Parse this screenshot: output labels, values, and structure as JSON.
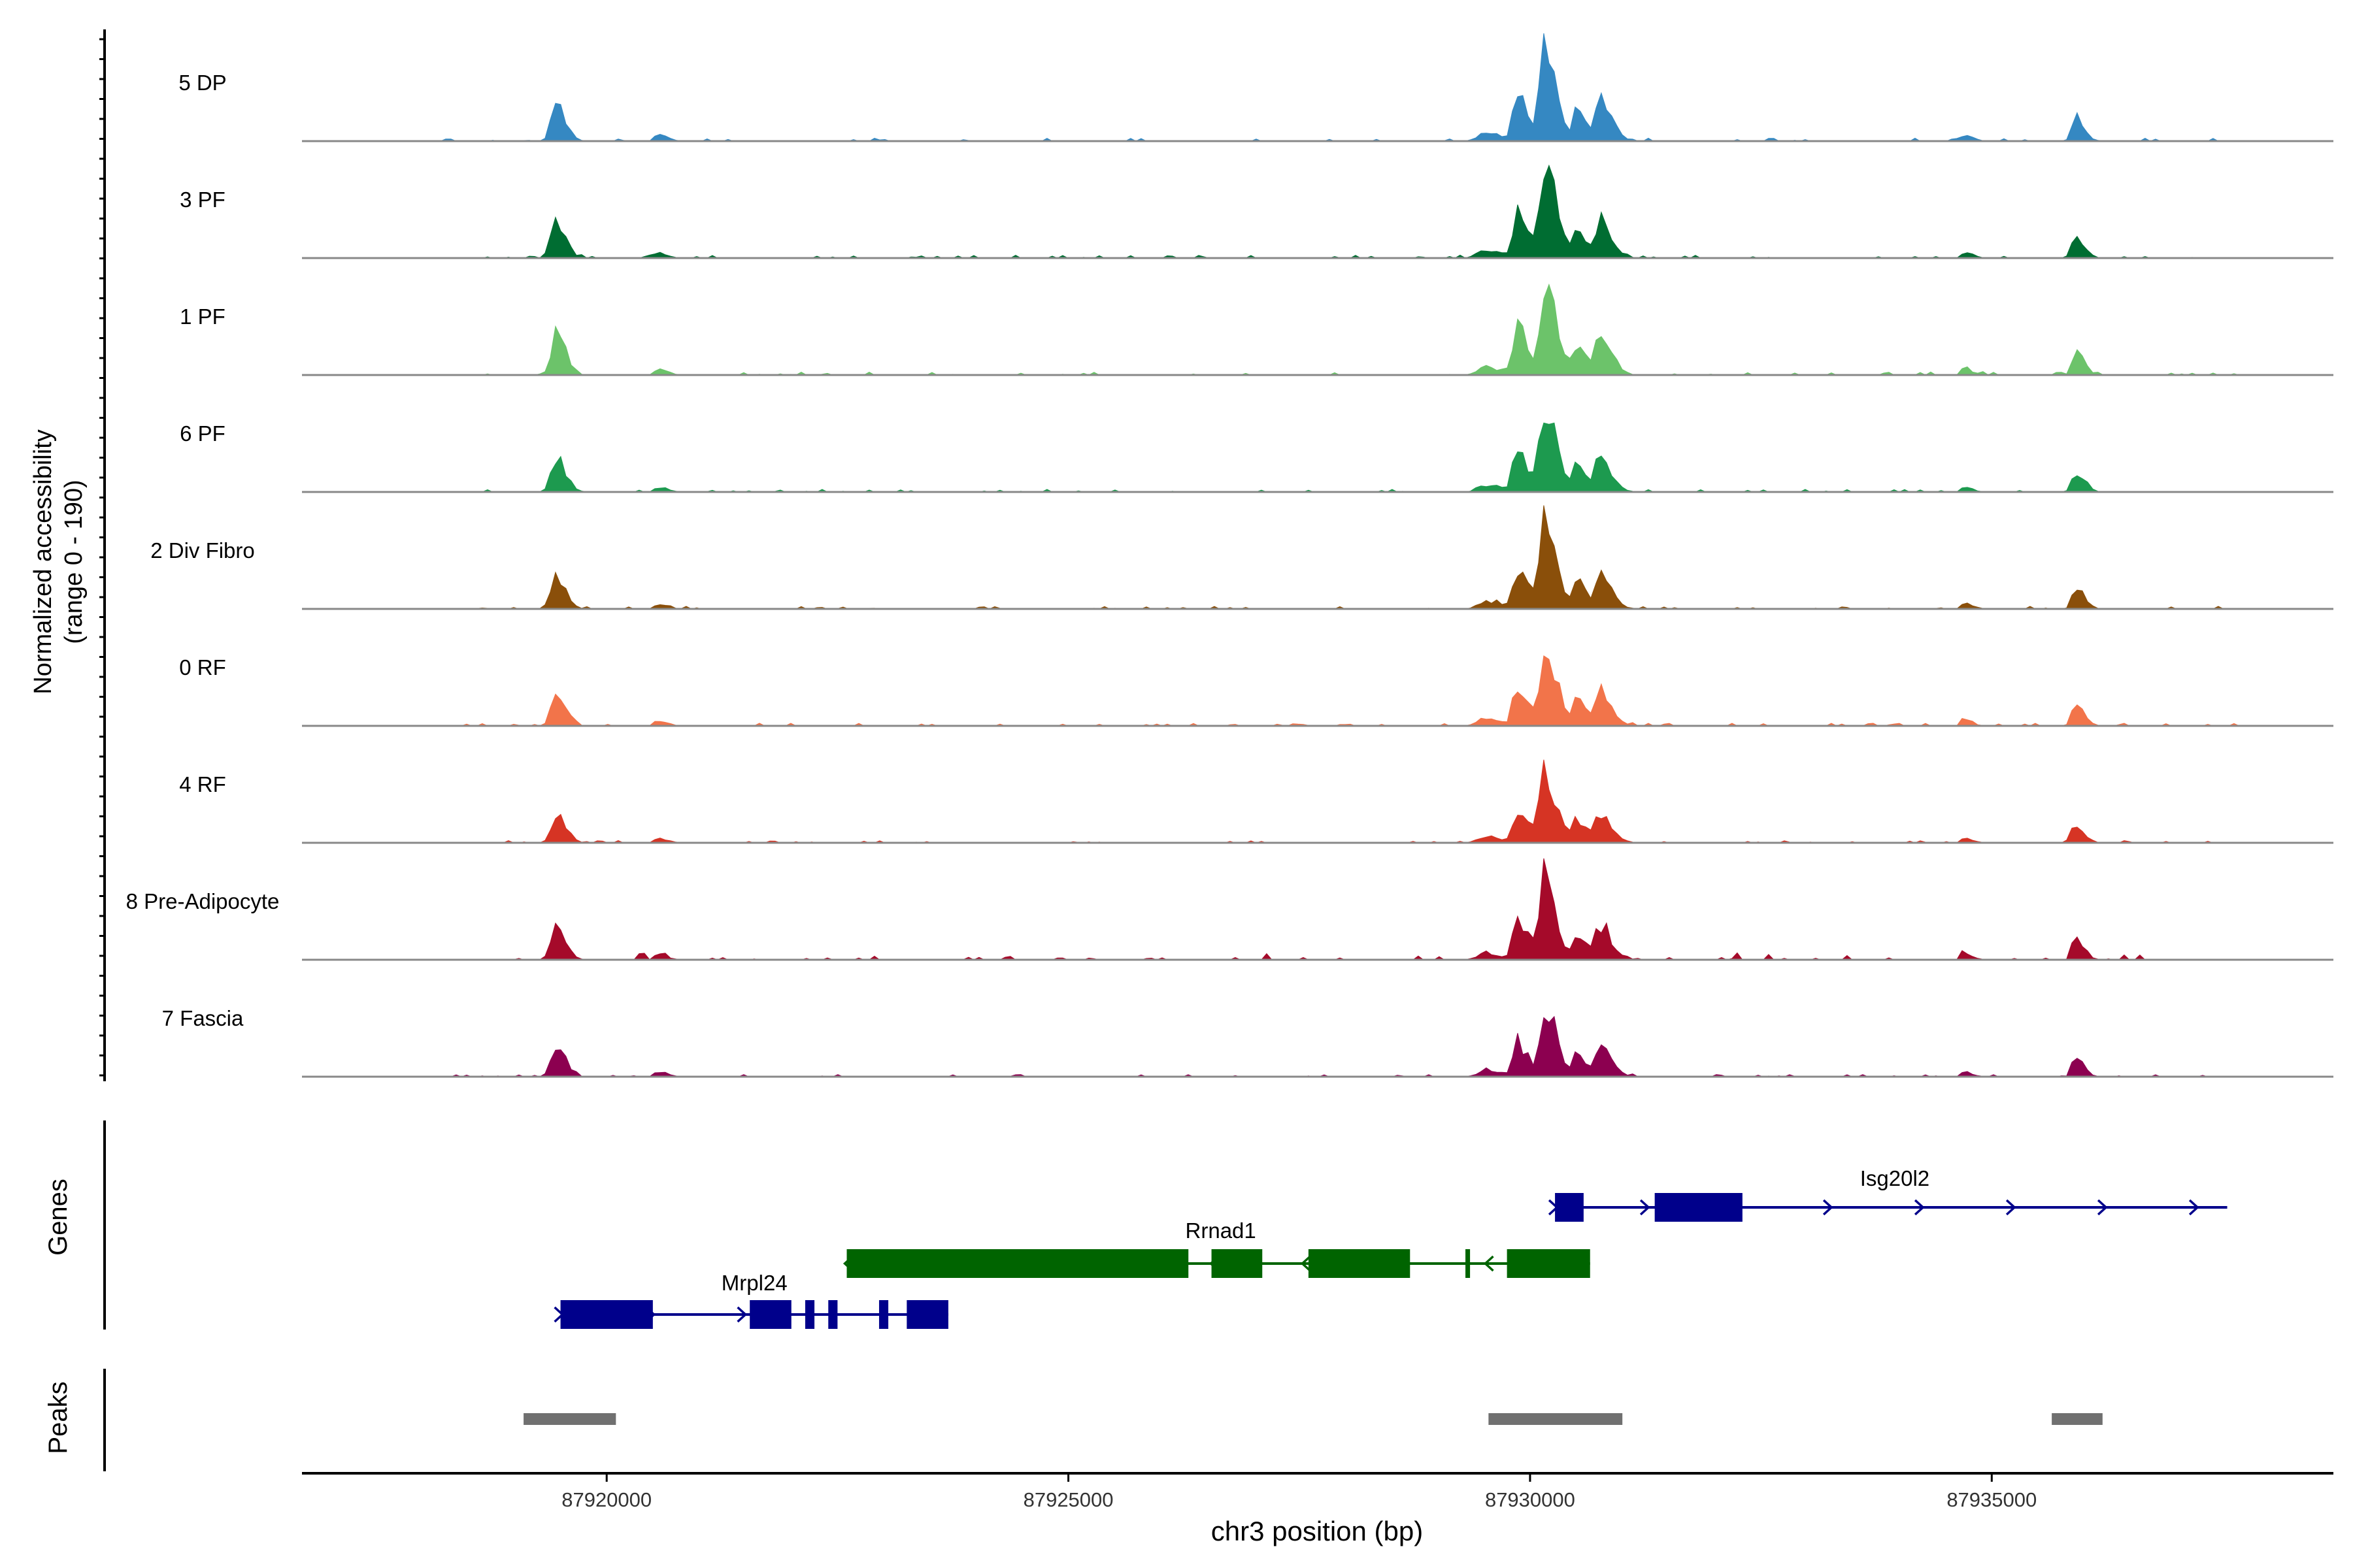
{
  "chart_data": {
    "type": "area",
    "title": "",
    "y_axis_label_line1": "Normalized accessibility",
    "y_axis_label_line2": "(range 0 - 190)",
    "x_axis_label": "chr3 position (bp)",
    "x_range": [
      87916700,
      87938700
    ],
    "x_ticks": [
      87920000,
      87925000,
      87930000,
      87935000
    ],
    "x_tick_labels": [
      "87920000",
      "87925000",
      "87930000",
      "87935000"
    ],
    "y_range": [
      0,
      190
    ],
    "peak_regions": [
      {
        "center": 87919450,
        "width": 130,
        "height": 0.4,
        "tail": 0.55
      },
      {
        "center": 87920550,
        "width": 80,
        "height": 0.06,
        "tail": 0.2
      },
      {
        "center": 87929500,
        "width": 180,
        "height": 0.08,
        "tail": 0.3
      },
      {
        "center": 87929850,
        "width": 100,
        "height": 0.45,
        "tail": 0.2
      },
      {
        "center": 87930150,
        "width": 110,
        "height": 0.95,
        "tail": 0.25
      },
      {
        "center": 87930500,
        "width": 90,
        "height": 0.3,
        "tail": 0.2
      },
      {
        "center": 87930750,
        "width": 100,
        "height": 0.38,
        "tail": 0.2
      },
      {
        "center": 87934700,
        "width": 70,
        "height": 0.06,
        "tail": 0.2
      },
      {
        "center": 87935900,
        "width": 90,
        "height": 0.24,
        "tail": 0.3
      }
    ],
    "tracks": [
      {
        "name": "5 DP",
        "color": "#3588c2",
        "scale": 0.92,
        "seed": 11
      },
      {
        "name": "3 PF",
        "color": "#006d32",
        "scale": 0.92,
        "seed": 23
      },
      {
        "name": "1 PF",
        "color": "#6cc36a",
        "scale": 0.95,
        "seed": 37
      },
      {
        "name": "6 PF",
        "color": "#1d9a4f",
        "scale": 0.8,
        "seed": 41
      },
      {
        "name": "2 Div Fibro",
        "color": "#8a4f0a",
        "scale": 0.82,
        "seed": 53
      },
      {
        "name": "0 RF",
        "color": "#f2744a",
        "scale": 0.83,
        "seed": 67
      },
      {
        "name": "4 RF",
        "color": "#d63424",
        "scale": 0.7,
        "seed": 71
      },
      {
        "name": "8 Pre-Adipocyte",
        "color": "#a50a2a",
        "scale": 0.8,
        "seed": 83
      },
      {
        "name": "7 Fascia",
        "color": "#8c0050",
        "scale": 0.7,
        "seed": 97
      }
    ],
    "genes_label": "Genes",
    "genes": [
      {
        "name": "Isg20l2",
        "label_at": 87933950,
        "strand": "+",
        "start": 87930270,
        "end": 87937550,
        "color": "#00008b",
        "exons": [
          [
            87930270,
            87930580
          ],
          [
            87931350,
            87932300
          ]
        ]
      },
      {
        "name": "Rrnad1",
        "label_at": 87926650,
        "strand": "-",
        "start": 87922600,
        "end": 87930650,
        "color": "#006400",
        "exons": [
          [
            87922600,
            87926300
          ],
          [
            87926550,
            87927100
          ],
          [
            87927600,
            87928700
          ],
          [
            87929300,
            87929350
          ],
          [
            87929750,
            87930650
          ]
        ]
      },
      {
        "name": "Mrpl24",
        "label_at": 87921600,
        "strand": "+",
        "start": 87919500,
        "end": 87923700,
        "color": "#00008b",
        "exons": [
          [
            87919500,
            87920500
          ],
          [
            87921550,
            87922000
          ],
          [
            87922150,
            87922250
          ],
          [
            87922400,
            87922500
          ],
          [
            87922950,
            87923050
          ],
          [
            87923250,
            87923700
          ]
        ]
      }
    ],
    "peaks_label": "Peaks",
    "peaks": [
      {
        "start": 87919100,
        "end": 87920100,
        "color": "#707070"
      },
      {
        "start": 87929550,
        "end": 87931000,
        "color": "#707070"
      },
      {
        "start": 87935650,
        "end": 87936200,
        "color": "#707070"
      }
    ],
    "axis_color": "#000000",
    "baseline_color": "#888888"
  }
}
